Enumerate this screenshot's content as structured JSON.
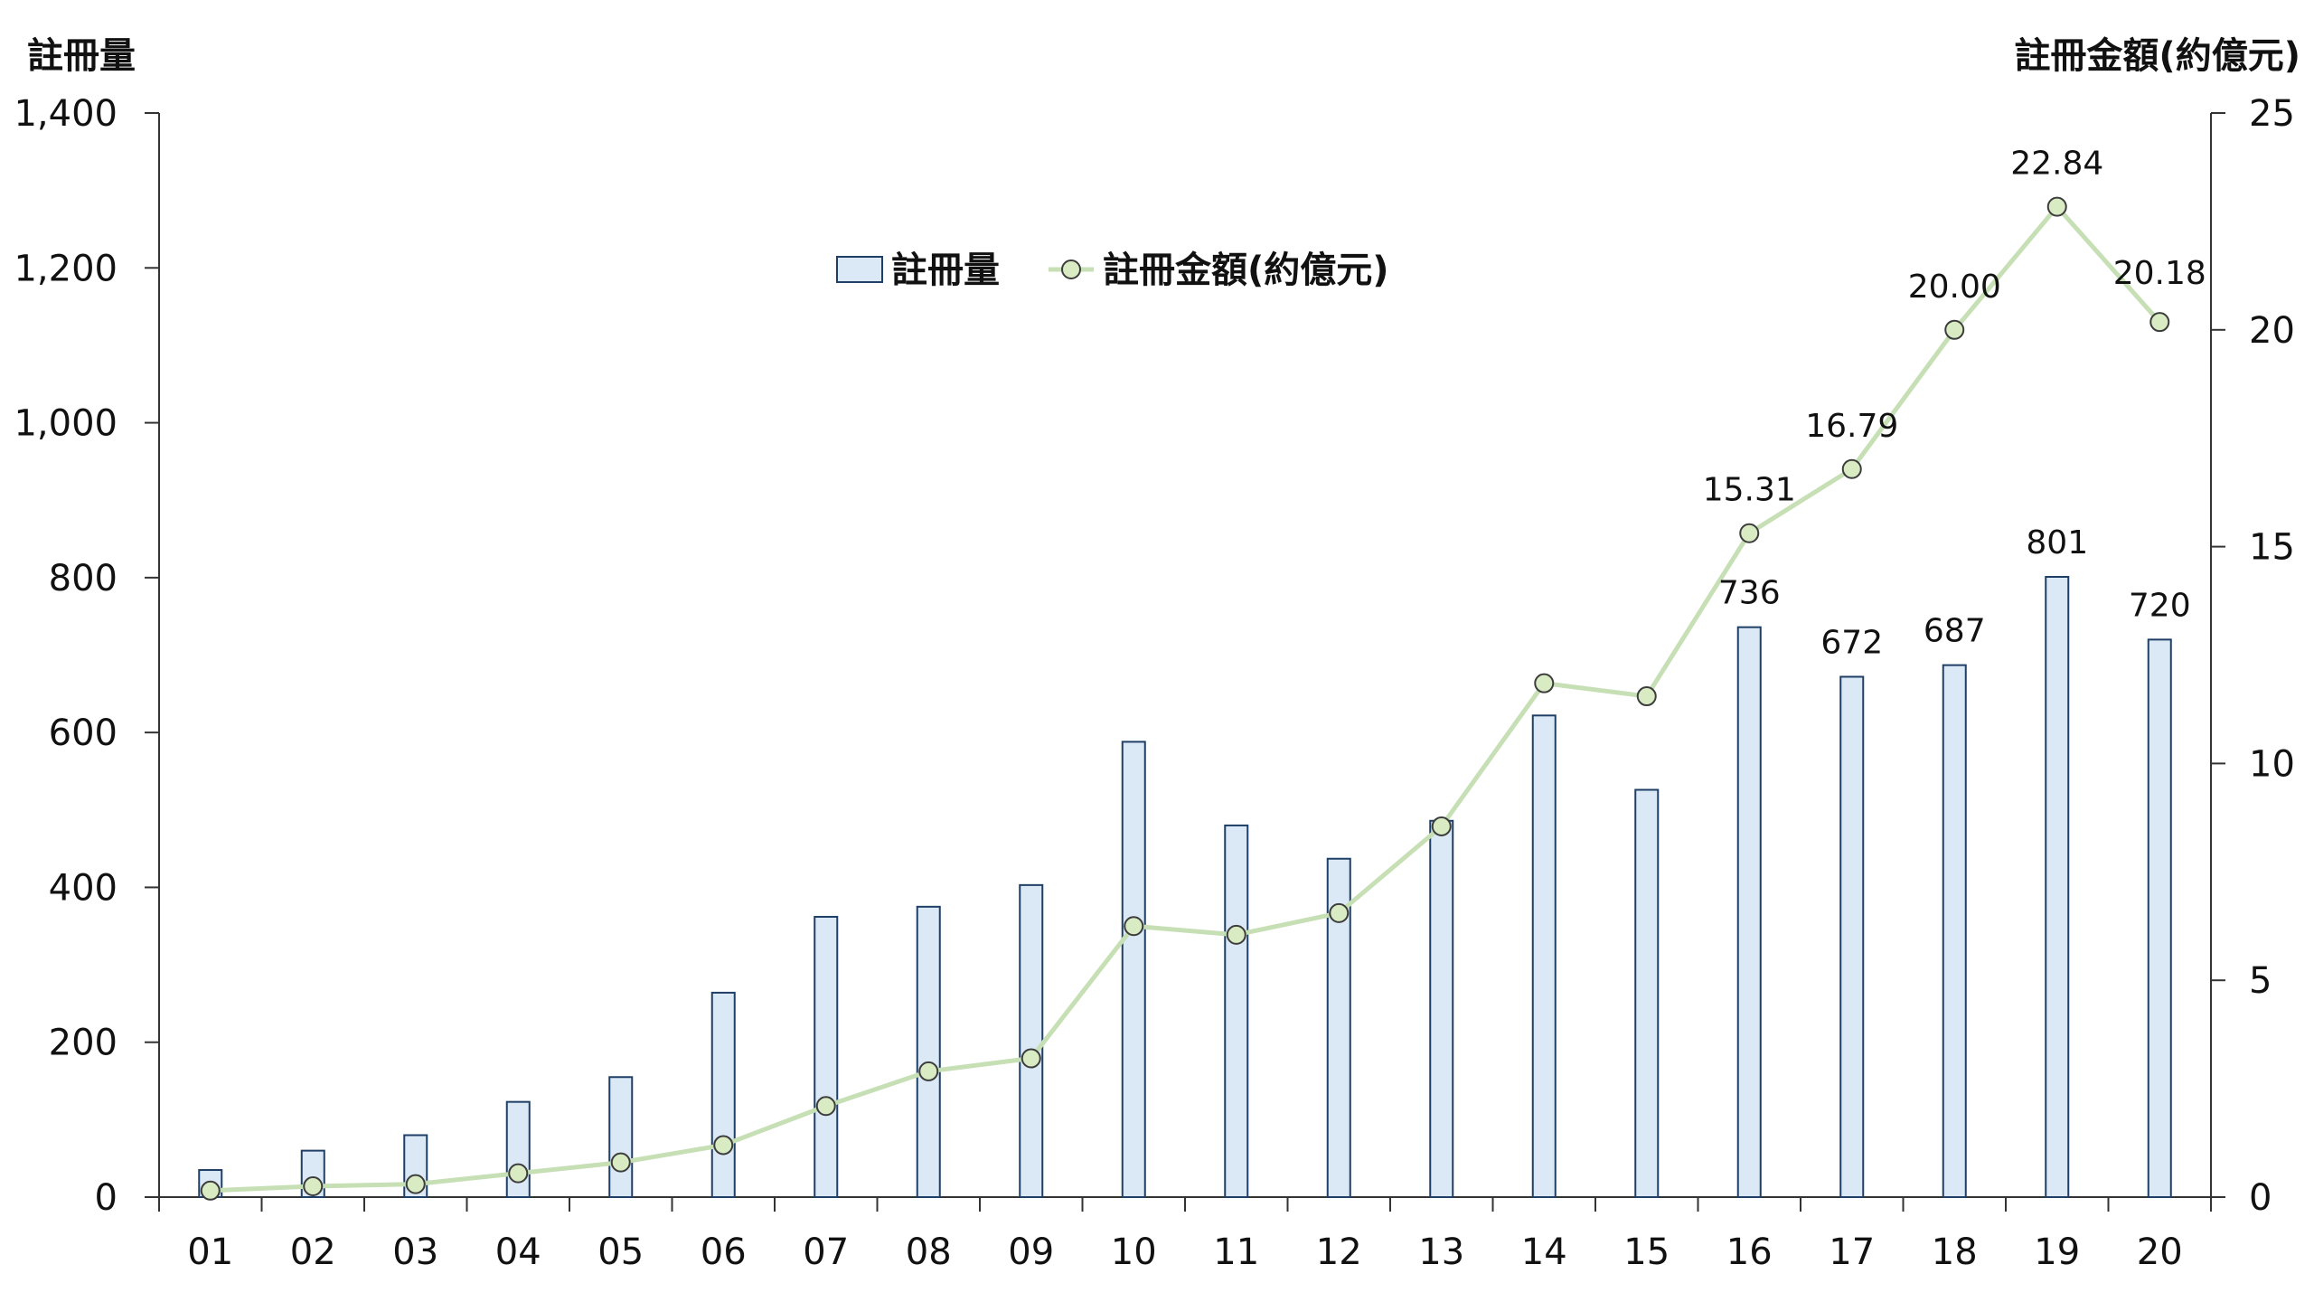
{
  "chart_data": {
    "type": "bar",
    "categories": [
      "01",
      "02",
      "03",
      "04",
      "05",
      "06",
      "07",
      "08",
      "09",
      "10",
      "11",
      "12",
      "13",
      "14",
      "15",
      "16",
      "17",
      "18",
      "19",
      "20"
    ],
    "series": [
      {
        "name": "註冊量",
        "type": "bar",
        "axis": "left",
        "values": [
          35,
          60,
          80,
          123,
          155,
          264,
          362,
          375,
          403,
          588,
          480,
          437,
          486,
          622,
          526,
          736,
          672,
          687,
          801,
          720
        ],
        "color": "#dbe8f5"
      },
      {
        "name": "註冊金額(約億元)",
        "type": "line",
        "axis": "right",
        "values": [
          0.15,
          0.25,
          0.3,
          0.55,
          0.8,
          1.2,
          2.1,
          2.9,
          3.2,
          6.25,
          6.05,
          6.55,
          8.55,
          11.85,
          11.55,
          15.31,
          16.79,
          20.0,
          22.84,
          20.18
        ],
        "color": "#c6dfb4"
      }
    ],
    "left_axis": {
      "title": "註冊量",
      "ylim": [
        0,
        1400
      ],
      "ticks": [
        0,
        200,
        400,
        600,
        800,
        1000,
        1200,
        1400
      ],
      "tick_labels": [
        "0",
        "200",
        "400",
        "600",
        "800",
        "1,000",
        "1,200",
        "1,400"
      ]
    },
    "right_axis": {
      "title": "註冊金額(約億元)",
      "ylim": [
        0,
        25
      ],
      "ticks": [
        0,
        5,
        10,
        15,
        20,
        25
      ],
      "tick_labels": [
        "0",
        "5",
        "10",
        "15",
        "20",
        "25"
      ]
    },
    "bar_labels": [
      {
        "index": 15,
        "text": "736"
      },
      {
        "index": 16,
        "text": "672"
      },
      {
        "index": 17,
        "text": "687"
      },
      {
        "index": 18,
        "text": "801"
      },
      {
        "index": 19,
        "text": "720"
      }
    ],
    "line_labels": [
      {
        "index": 15,
        "text": "15.31"
      },
      {
        "index": 16,
        "text": "16.79"
      },
      {
        "index": 17,
        "text": "20.00"
      },
      {
        "index": 18,
        "text": "22.84"
      },
      {
        "index": 19,
        "text": "20.18"
      }
    ],
    "legend": {
      "position": "top-center",
      "items": [
        "註冊量",
        "註冊金額(約億元)"
      ]
    },
    "grid": false
  }
}
